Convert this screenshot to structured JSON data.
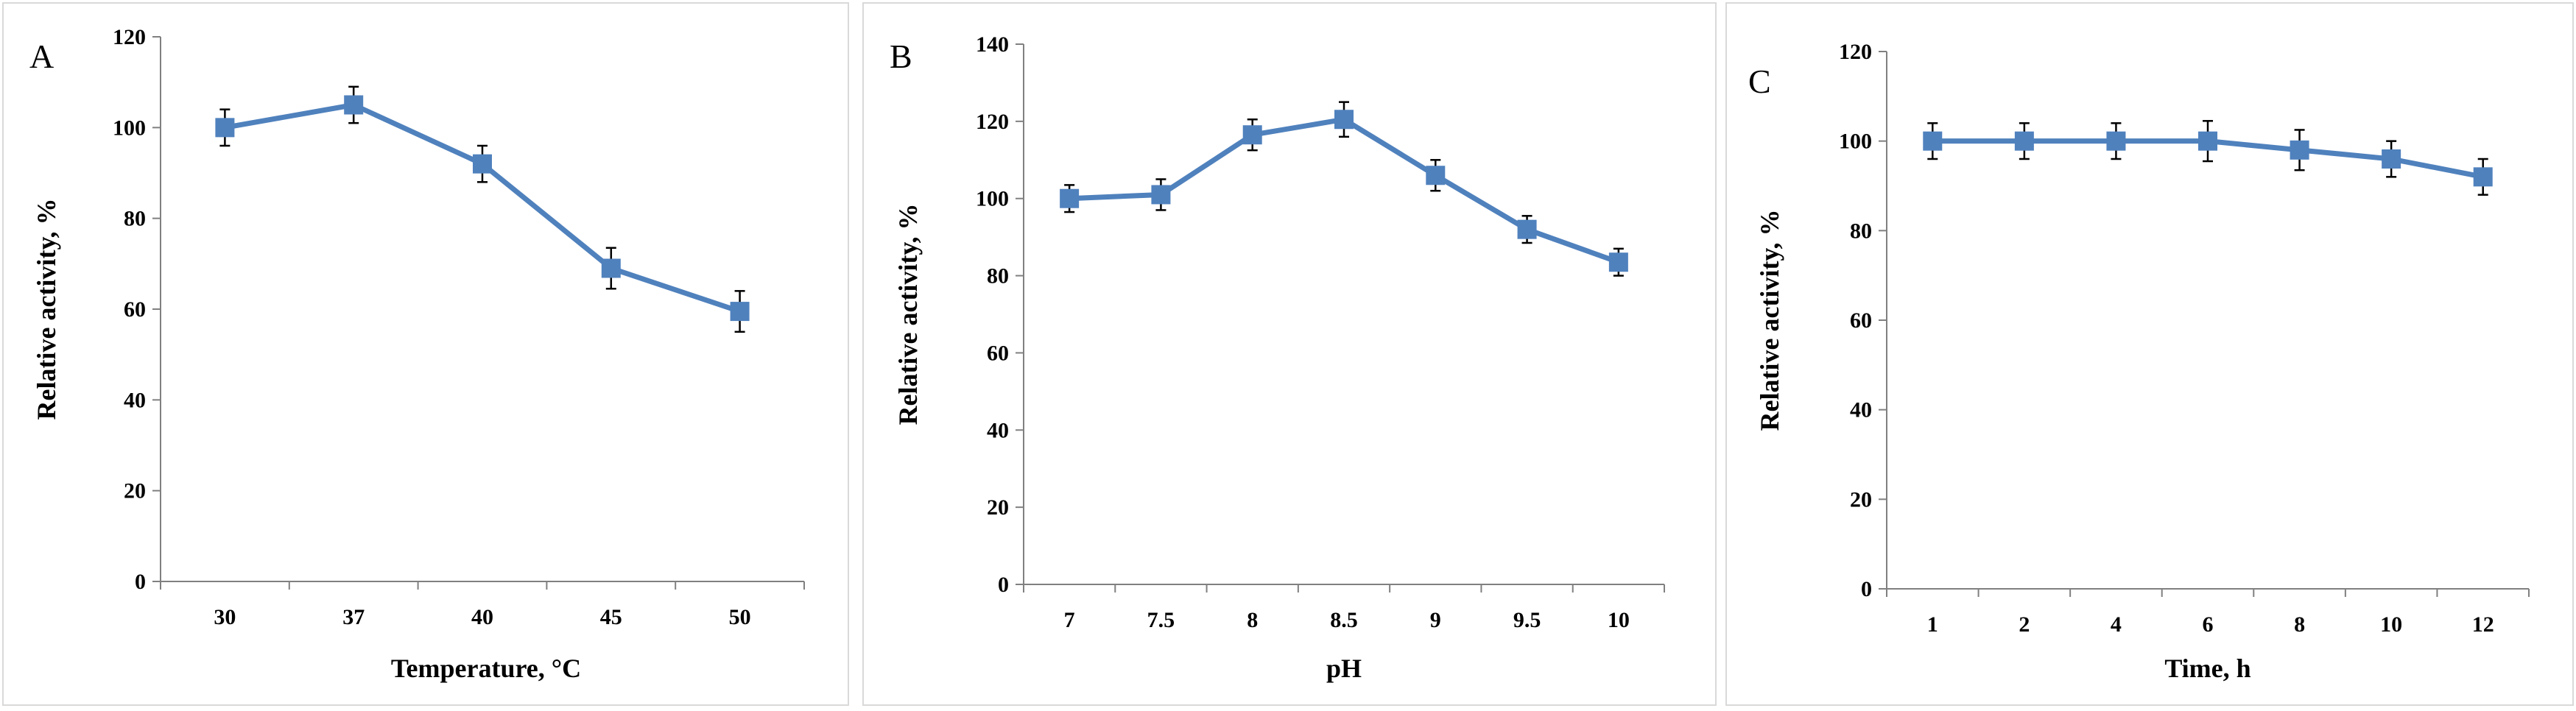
{
  "chart_data": [
    {
      "type": "line",
      "panel": "A",
      "categories": [
        "30",
        "37",
        "40",
        "45",
        "50"
      ],
      "series": [
        {
          "values": [
            100,
            105,
            92,
            69,
            59.5
          ],
          "errors": [
            4,
            4,
            4,
            4.5,
            4.5
          ]
        }
      ],
      "xlabel": "Temperature, °C",
      "ylabel": "Relative activity, %",
      "ylim": [
        0,
        120
      ],
      "yticks": [
        "0",
        "20",
        "40",
        "60",
        "80",
        "100",
        "120"
      ],
      "grid": false,
      "marker": "square",
      "color": "#4f81bd"
    },
    {
      "type": "line",
      "panel": "B",
      "categories": [
        "7",
        "7.5",
        "8",
        "8.5",
        "9",
        "9.5",
        "10"
      ],
      "series": [
        {
          "values": [
            100,
            101,
            116.5,
            120.5,
            106,
            92,
            83.5
          ],
          "errors": [
            3.5,
            4,
            4,
            4.5,
            4,
            3.5,
            3.5
          ]
        }
      ],
      "xlabel": "pH",
      "ylabel": "Relative activity, %",
      "ylim": [
        0,
        140
      ],
      "yticks": [
        "0",
        "20",
        "40",
        "60",
        "80",
        "100",
        "120",
        "140"
      ],
      "grid": false,
      "marker": "square",
      "color": "#4f81bd"
    },
    {
      "type": "line",
      "panel": "C",
      "categories": [
        "1",
        "2",
        "4",
        "6",
        "8",
        "10",
        "12"
      ],
      "series": [
        {
          "values": [
            100,
            100,
            100,
            100,
            98,
            96,
            92
          ],
          "errors": [
            4,
            4,
            4,
            4.5,
            4.5,
            4,
            4
          ]
        }
      ],
      "xlabel": "Time, h",
      "ylabel": "Relative activity, %",
      "ylim": [
        0,
        120
      ],
      "yticks": [
        "0",
        "20",
        "40",
        "60",
        "80",
        "100",
        "120"
      ],
      "grid": false,
      "marker": "square",
      "color": "#4f81bd"
    }
  ]
}
